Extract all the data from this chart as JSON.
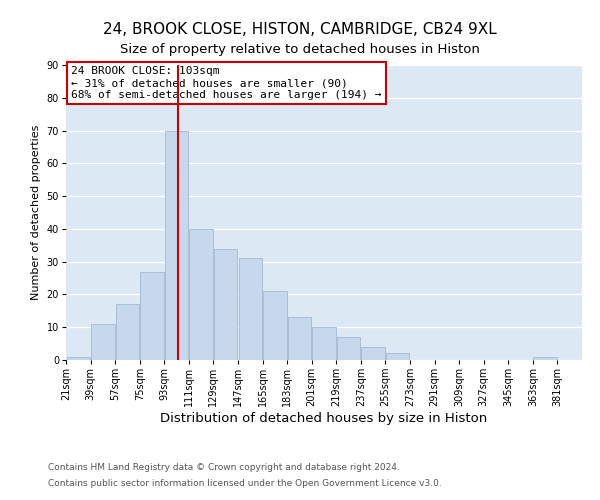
{
  "title": "24, BROOK CLOSE, HISTON, CAMBRIDGE, CB24 9XL",
  "subtitle": "Size of property relative to detached houses in Histon",
  "xlabel": "Distribution of detached houses by size in Histon",
  "ylabel": "Number of detached properties",
  "bar_color": "#c8d8ec",
  "bar_edge_color": "#a8c0d8",
  "background_color": "#dce8f4",
  "grid_color": "#ffffff",
  "vline_color": "#cc0000",
  "vline_x": 103,
  "annotation_box_text": "24 BROOK CLOSE: 103sqm\n← 31% of detached houses are smaller (90)\n68% of semi-detached houses are larger (194) →",
  "annotation_fontsize": 8.0,
  "bins_left": [
    21,
    39,
    57,
    75,
    93,
    111,
    129,
    147,
    165,
    183,
    201,
    219,
    237,
    255,
    273,
    291,
    309,
    327,
    345,
    363
  ],
  "bin_width": 18,
  "heights": [
    1,
    11,
    17,
    27,
    70,
    40,
    34,
    31,
    21,
    13,
    10,
    7,
    4,
    2,
    0,
    0,
    0,
    0,
    0,
    1
  ],
  "ylim": [
    0,
    90
  ],
  "xlim": [
    21,
    399
  ],
  "yticks": [
    0,
    10,
    20,
    30,
    40,
    50,
    60,
    70,
    80,
    90
  ],
  "tick_labels": [
    "21sqm",
    "39sqm",
    "57sqm",
    "75sqm",
    "93sqm",
    "111sqm",
    "129sqm",
    "147sqm",
    "165sqm",
    "183sqm",
    "201sqm",
    "219sqm",
    "237sqm",
    "255sqm",
    "273sqm",
    "291sqm",
    "309sqm",
    "327sqm",
    "345sqm",
    "363sqm",
    "381sqm"
  ],
  "tick_positions": [
    21,
    39,
    57,
    75,
    93,
    111,
    129,
    147,
    165,
    183,
    201,
    219,
    237,
    255,
    273,
    291,
    309,
    327,
    345,
    363,
    381
  ],
  "footer_line1": "Contains HM Land Registry data © Crown copyright and database right 2024.",
  "footer_line2": "Contains public sector information licensed under the Open Government Licence v3.0.",
  "title_fontsize": 11,
  "subtitle_fontsize": 9.5,
  "xlabel_fontsize": 9.5,
  "ylabel_fontsize": 8,
  "tick_fontsize": 7,
  "footer_fontsize": 6.5,
  "fig_bg": "#ffffff"
}
